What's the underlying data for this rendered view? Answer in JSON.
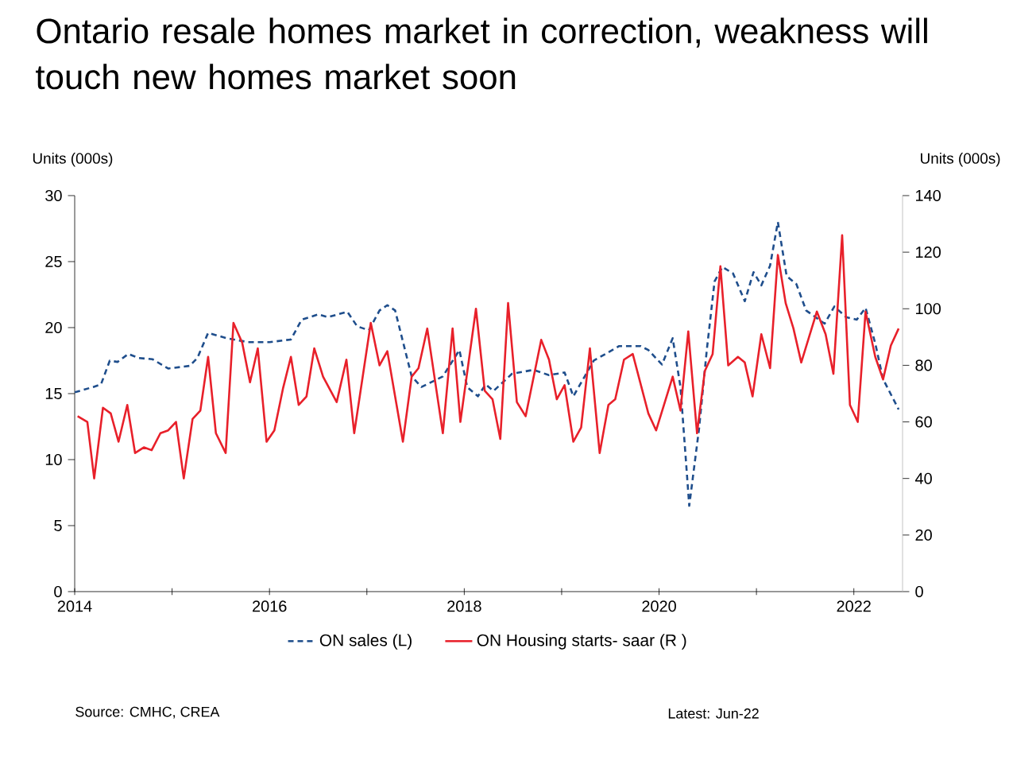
{
  "chart_data": {
    "type": "line",
    "title": "Ontario resale homes market in correction, weakness will touch new homes market soon",
    "ylabel": "Units (000s)",
    "y2label": "Units (000s)",
    "xlim": [
      2014,
      2022.5
    ],
    "xticks": [
      2014,
      {
        "value": 2015,
        "label": null
      },
      2016,
      {
        "value": 2017,
        "label": null
      },
      2018,
      {
        "value": 2019,
        "label": null
      },
      2020,
      {
        "value": 2021,
        "label": null
      },
      2022
    ],
    "ylim": [
      0,
      30
    ],
    "yticks": [
      0,
      5,
      10,
      15,
      20,
      25,
      30
    ],
    "y2lim": [
      0,
      140
    ],
    "y2ticks": [
      0,
      20,
      40,
      60,
      80,
      100,
      120,
      140
    ],
    "grid": false,
    "legend": "bottom",
    "marker": "none",
    "series": [
      {
        "name": "ON sales (L)",
        "color": "#1f4e8c",
        "line_style": "dashed",
        "x": [
          2014.0,
          2014.19,
          2014.27,
          2014.36,
          2014.44,
          2014.55,
          2014.66,
          2014.8,
          2014.96,
          2015.18,
          2015.26,
          2015.37,
          2015.56,
          2015.78,
          2016.0,
          2016.22,
          2016.33,
          2016.5,
          2016.6,
          2016.8,
          2016.9,
          2017.02,
          2017.13,
          2017.21,
          2017.29,
          2017.46,
          2017.56,
          2017.78,
          2017.95,
          2018.03,
          2018.14,
          2018.22,
          2018.3,
          2018.49,
          2018.71,
          2018.87,
          2019.03,
          2019.12,
          2019.33,
          2019.59,
          2019.81,
          2019.89,
          2020.03,
          2020.14,
          2020.22,
          2020.31,
          2020.41,
          2020.49,
          2020.57,
          2020.65,
          2020.76,
          2020.88,
          2020.97,
          2021.05,
          2021.14,
          2021.22,
          2021.31,
          2021.41,
          2021.51,
          2021.7,
          2021.8,
          2021.92,
          2022.03,
          2022.12,
          2022.22,
          2022.3,
          2022.46
        ],
        "values": [
          15.1,
          15.5,
          15.7,
          17.5,
          17.4,
          18.0,
          17.7,
          17.6,
          16.9,
          17.1,
          17.7,
          19.6,
          19.2,
          18.9,
          18.9,
          19.1,
          20.6,
          21.0,
          20.8,
          21.2,
          20.1,
          19.8,
          21.3,
          21.7,
          21.3,
          16.3,
          15.5,
          16.3,
          18.3,
          15.5,
          14.8,
          15.7,
          15.2,
          16.5,
          16.8,
          16.4,
          16.6,
          14.8,
          17.5,
          18.6,
          18.6,
          18.3,
          17.2,
          19.2,
          15.5,
          6.5,
          12.3,
          18.3,
          23.5,
          24.6,
          24.1,
          22.0,
          24.2,
          23.2,
          24.7,
          28.0,
          23.9,
          23.3,
          21.3,
          20.3,
          21.6,
          20.8,
          20.6,
          21.5,
          18.8,
          16.1,
          13.8
        ]
      },
      {
        "name": "ON Housing starts- saar (R )",
        "color": "#e8202a",
        "line_style": "solid",
        "axis": "y2",
        "x": [
          2014.03,
          2014.13,
          2014.2,
          2014.29,
          2014.37,
          2014.45,
          2014.54,
          2014.62,
          2014.71,
          2014.79,
          2014.88,
          2014.96,
          2015.04,
          2015.12,
          2015.21,
          2015.29,
          2015.37,
          2015.45,
          2015.55,
          2015.63,
          2015.72,
          2015.8,
          2015.88,
          2015.97,
          2016.05,
          2016.14,
          2016.22,
          2016.3,
          2016.38,
          2016.46,
          2016.55,
          2016.69,
          2016.79,
          2016.87,
          2017.04,
          2017.13,
          2017.21,
          2017.37,
          2017.46,
          2017.53,
          2017.62,
          2017.78,
          2017.88,
          2017.96,
          2018.12,
          2018.21,
          2018.29,
          2018.37,
          2018.45,
          2018.54,
          2018.63,
          2018.79,
          2018.87,
          2018.95,
          2019.03,
          2019.12,
          2019.2,
          2019.29,
          2019.39,
          2019.48,
          2019.55,
          2019.64,
          2019.73,
          2019.89,
          2019.97,
          2020.14,
          2020.22,
          2020.3,
          2020.39,
          2020.47,
          2020.55,
          2020.63,
          2020.71,
          2020.81,
          2020.88,
          2020.96,
          2021.05,
          2021.14,
          2021.22,
          2021.3,
          2021.38,
          2021.46,
          2021.62,
          2021.71,
          2021.79,
          2021.88,
          2021.96,
          2022.04,
          2022.12,
          2022.22,
          2022.3,
          2022.38,
          2022.46
        ],
        "values": [
          62,
          60,
          40,
          65,
          63,
          53,
          66,
          49,
          51,
          50,
          56,
          57,
          60,
          40,
          61,
          64,
          83,
          56,
          49,
          95,
          88,
          74,
          86,
          53,
          57,
          72,
          83,
          66,
          69,
          86,
          76,
          67,
          82,
          56,
          95,
          80,
          85,
          53,
          76,
          79,
          93,
          56,
          93,
          60,
          100,
          71,
          68,
          54,
          102,
          67,
          62,
          89,
          82,
          68,
          73,
          53,
          58,
          86,
          49,
          66,
          68,
          82,
          84,
          63,
          57,
          76,
          64,
          92,
          56,
          78,
          84,
          115,
          80,
          83,
          81,
          69,
          91,
          79,
          119,
          102,
          93,
          81,
          99,
          91,
          77,
          126,
          66,
          60,
          99,
          83,
          75,
          87,
          93
        ]
      }
    ],
    "annotations": [
      "Source: CMHC, CREA",
      "Latest: Jun-22"
    ]
  }
}
